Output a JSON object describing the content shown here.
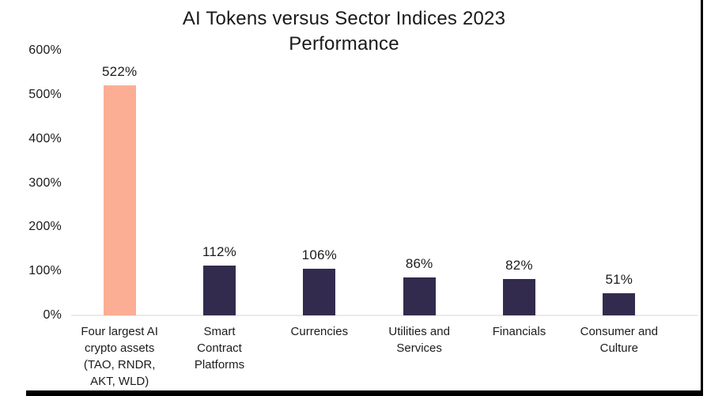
{
  "chart_data": {
    "type": "bar",
    "title": "AI Tokens versus Sector Indices 2023\nPerformance",
    "categories": [
      "Four largest AI\ncrypto assets\n(TAO, RNDR,\nAKT, WLD)",
      "Smart\nContract\nPlatforms",
      "Currencies",
      "Utilities and\nServices",
      "Financials",
      "Consumer and\nCulture"
    ],
    "values": [
      522,
      112,
      106,
      86,
      82,
      51
    ],
    "value_labels": [
      "522%",
      "112%",
      "106%",
      "86%",
      "82%",
      "51%"
    ],
    "bar_colors": [
      "#FBAE93",
      "#332B4E",
      "#332B4E",
      "#332B4E",
      "#332B4E",
      "#332B4E"
    ],
    "y_ticks": [
      "0%",
      "100%",
      "200%",
      "300%",
      "400%",
      "500%",
      "600%"
    ],
    "ylim": [
      0,
      600
    ],
    "xlabel": "",
    "ylabel": "",
    "grid": false,
    "legend": "none",
    "text_color": "#1b1b1b",
    "axis_line_color": "#eaeaea"
  }
}
